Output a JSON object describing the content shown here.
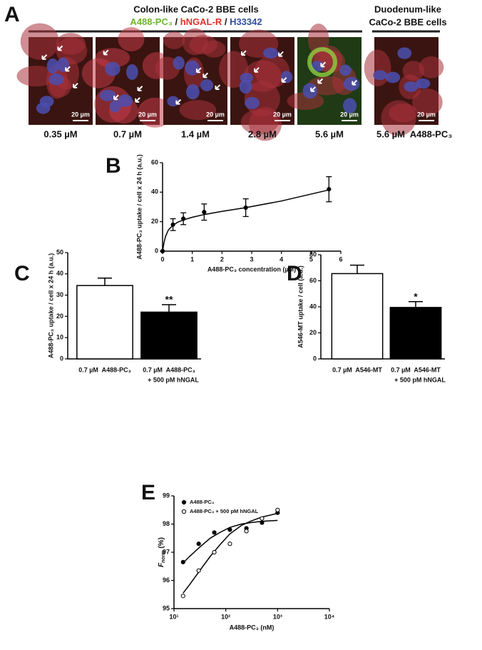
{
  "panel_a": {
    "label": "A",
    "title": "Colon-like CaCo-2 BBE cells",
    "stain": [
      "A488-PC₃",
      " / ",
      "hNGAL-R",
      " / ",
      "H33342"
    ],
    "side_title": [
      "Duodenum-like",
      "CaCo-2 BBE cells"
    ],
    "images": [
      {
        "scale": "20 µm",
        "caption": "0.35 µM"
      },
      {
        "scale": "20 µm",
        "caption": "0.7 µM"
      },
      {
        "scale": "20 µm",
        "caption": "1.4 µM"
      },
      {
        "scale": "20 µm",
        "caption": "2.8 µM"
      },
      {
        "scale": "20 µm",
        "caption": "5.6 µM"
      },
      {
        "scale": "20 µm",
        "caption": "5.6 µM  A488-PC₃"
      }
    ]
  },
  "chart_data": [
    {
      "panel": "B",
      "type": "line",
      "y_label": "A488-PC₃ uptake / cell x 24 h (a.u.)",
      "x_label": "A488-PC₃ concentration (µM)",
      "xlim": [
        0,
        6
      ],
      "xticks": [
        0,
        1,
        2,
        3,
        4,
        5,
        6
      ],
      "ylim": [
        0,
        60
      ],
      "yticks": [
        0,
        20,
        40,
        60
      ],
      "series": [
        {
          "color": "#000000",
          "marker": "filled",
          "x": [
            0,
            0.35,
            0.7,
            1.4,
            2.8,
            5.6
          ],
          "values": [
            0,
            18,
            22,
            26.5,
            29.5,
            42
          ],
          "errors": [
            0,
            4,
            4,
            5.5,
            6,
            8.5
          ],
          "fit": {
            "x": [
              0,
              0.05,
              0.1,
              0.2,
              0.35,
              0.5,
              0.7,
              1,
              1.4,
              2,
              2.8,
              4,
              5.6
            ],
            "values": [
              0,
              6,
              10,
              14.5,
              17.5,
              19.5,
              21.2,
              23,
              24.8,
              27,
              29.5,
              34,
              41.5
            ]
          }
        }
      ]
    },
    {
      "panel": "C",
      "type": "bar",
      "y_label": "A488-PC₃ uptake / cell x 24 h (a.u.)",
      "categories": [
        [
          "0.7 µM  A488-PC₃"
        ],
        [
          "0.7 µM  A488-PC₃",
          "+ 500 pM hNGAL"
        ]
      ],
      "values": [
        34.5,
        22
      ],
      "errors": [
        3.5,
        3.5
      ],
      "colors": [
        "#ffffff",
        "#000000"
      ],
      "annotation": "**",
      "ylim": [
        0,
        50
      ],
      "yticks": [
        0,
        10,
        20,
        30,
        40,
        50
      ]
    },
    {
      "panel": "D",
      "type": "bar",
      "y_label": "A546-MT uptake / cell (a.u.)",
      "categories": [
        [
          "0.7 µM  A546-MT"
        ],
        [
          "0.7 µM  A546-MT",
          "+ 500 pM hNGAL"
        ]
      ],
      "values": [
        65.5,
        39.5
      ],
      "errors": [
        6.5,
        4.5
      ],
      "colors": [
        "#ffffff",
        "#000000"
      ],
      "annotation": "*",
      "ylim": [
        0,
        80
      ],
      "yticks": [
        0,
        20,
        40,
        60,
        80
      ]
    },
    {
      "panel": "E",
      "type": "line",
      "y_label": [
        "F",
        "norm",
        " (%)"
      ],
      "x_label": "A488-PC₃ (nM)",
      "xscale": "log",
      "xlim": [
        10,
        10000
      ],
      "xticks": [
        {
          "value": 10,
          "label": "10¹"
        },
        {
          "value": 100,
          "label": "10²"
        },
        {
          "value": 1000,
          "label": "10³"
        },
        {
          "value": 10000,
          "label": "10⁴"
        }
      ],
      "ylim": [
        95,
        99
      ],
      "yticks": [
        95,
        96,
        97,
        98,
        99
      ],
      "series": [
        {
          "name": "A488-PC₃",
          "color": "#000000",
          "marker": "filled",
          "x": [
            15,
            30,
            60,
            120,
            250,
            500,
            1000
          ],
          "values": [
            96.65,
            97.3,
            97.7,
            97.8,
            97.85,
            98.05,
            98.4
          ],
          "fit": {
            "x": [
              15,
              20,
              30,
              50,
              80,
              120,
              200,
              300,
              500,
              1000
            ],
            "values": [
              96.62,
              96.85,
              97.15,
              97.5,
              97.72,
              97.88,
              98,
              98.05,
              98.1,
              98.13
            ]
          }
        },
        {
          "name": "A488-PC₃ + 500 pM hNGAL",
          "color": "#000000",
          "marker": "open",
          "x": [
            15,
            30,
            60,
            120,
            250,
            500,
            1000
          ],
          "values": [
            95.45,
            96.35,
            97,
            97.3,
            97.75,
            98.2,
            98.5
          ],
          "fit": {
            "x": [
              15,
              20,
              30,
              50,
              80,
              120,
              200,
              300,
              500,
              1000
            ],
            "values": [
              95.55,
              95.85,
              96.3,
              96.85,
              97.3,
              97.65,
              97.95,
              98.1,
              98.25,
              98.38
            ]
          }
        }
      ]
    }
  ]
}
